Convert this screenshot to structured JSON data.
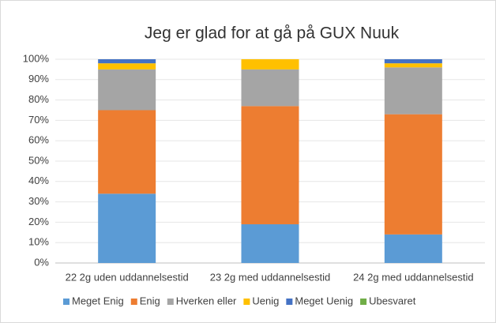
{
  "chart_data": {
    "type": "stacked_bar",
    "title": "Jeg er glad for at gå på GUX Nuuk",
    "categories": [
      "22 2g uden uddannelsestid",
      "23 2g med uddannelsestid",
      "24 2g med uddannelsestid"
    ],
    "series": [
      {
        "name": "Meget Enig",
        "color": "#5b9bd5",
        "values": [
          34,
          19,
          14
        ]
      },
      {
        "name": "Enig",
        "color": "#ed7d31",
        "values": [
          41,
          58,
          59
        ]
      },
      {
        "name": "Hverken eller",
        "color": "#a5a5a5",
        "values": [
          20,
          18,
          23
        ]
      },
      {
        "name": "Uenig",
        "color": "#ffc000",
        "values": [
          3,
          5,
          2
        ]
      },
      {
        "name": "Meget Uenig",
        "color": "#4472c4",
        "values": [
          2,
          0,
          2
        ]
      },
      {
        "name": "Ubesvaret",
        "color": "#70ad47",
        "values": [
          0,
          0,
          0
        ]
      }
    ],
    "ylim": [
      0,
      100
    ],
    "yticks": [
      {
        "value": 0,
        "label": "0%"
      },
      {
        "value": 10,
        "label": "10%"
      },
      {
        "value": 20,
        "label": "20%"
      },
      {
        "value": 30,
        "label": "30%"
      },
      {
        "value": 40,
        "label": "40%"
      },
      {
        "value": 50,
        "label": "50%"
      },
      {
        "value": 60,
        "label": "60%"
      },
      {
        "value": 70,
        "label": "70%"
      },
      {
        "value": 80,
        "label": "80%"
      },
      {
        "value": 90,
        "label": "90%"
      },
      {
        "value": 100,
        "label": "100%"
      }
    ],
    "grid": true,
    "legend": "bottom"
  }
}
